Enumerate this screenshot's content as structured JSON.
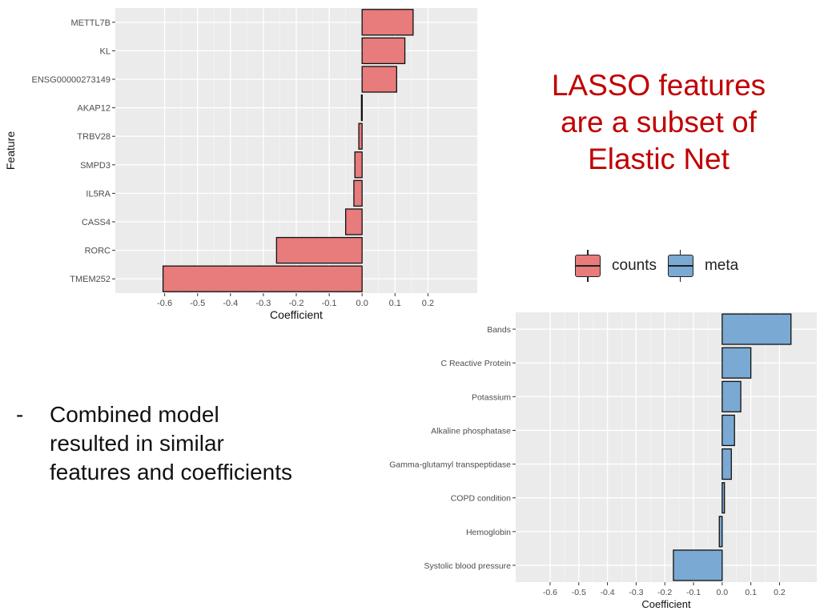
{
  "slide": {
    "title_lines": [
      "LASSO features",
      "are a subset of",
      "Elastic Net"
    ],
    "title_color": "#c00000",
    "legend": [
      {
        "label": "counts",
        "color": "#e87b7b"
      },
      {
        "label": "meta",
        "color": "#7aa9d3"
      }
    ],
    "bullet": {
      "marker": "-",
      "lines": [
        "Combined model",
        "resulted in similar",
        "features and coefficients"
      ]
    }
  },
  "chart_data": [
    {
      "type": "bar",
      "orientation": "horizontal",
      "xlabel": "Coefficient",
      "ylabel": "Feature",
      "xlim": [
        -0.75,
        0.35
      ],
      "x_ticks": [
        -0.6,
        -0.5,
        -0.4,
        -0.3,
        -0.2,
        -0.1,
        0.0,
        0.1,
        0.2
      ],
      "x_tick_labels": [
        "-0.6",
        "-0.5",
        "-0.4",
        "-0.3",
        "-0.2",
        "-0.1",
        "0.0",
        "0.1",
        "0.2"
      ],
      "fill": "#e87b7b",
      "categories": [
        "METTL7B",
        "KL",
        "ENSG00000273149",
        "AKAP12",
        "TRBV28",
        "SMPD3",
        "IL5RA",
        "CASS4",
        "RORC",
        "TMEM252"
      ],
      "values": [
        0.155,
        0.13,
        0.105,
        -0.002,
        -0.01,
        -0.022,
        -0.025,
        -0.05,
        -0.26,
        -0.605
      ]
    },
    {
      "type": "bar",
      "orientation": "horizontal",
      "xlabel": "Coefficient",
      "ylabel": "",
      "xlim": [
        -0.72,
        0.33
      ],
      "x_ticks": [
        -0.6,
        -0.5,
        -0.4,
        -0.3,
        -0.2,
        -0.1,
        0.0,
        0.1,
        0.2
      ],
      "x_tick_labels": [
        "-0.6",
        "-0.5",
        "-0.4",
        "-0.3",
        "-0.2",
        "-0.1",
        "0.0",
        "0.1",
        "0.2"
      ],
      "fill": "#7aa9d3",
      "categories": [
        "Bands",
        "C Reactive Protein",
        "Potassium",
        "Alkaline phosphatase",
        "Gamma-glutamyl transpeptidase",
        "COPD condition",
        "Hemoglobin",
        "Systolic blood pressure"
      ],
      "values": [
        0.24,
        0.1,
        0.065,
        0.043,
        0.032,
        0.008,
        -0.01,
        -0.17
      ]
    }
  ]
}
